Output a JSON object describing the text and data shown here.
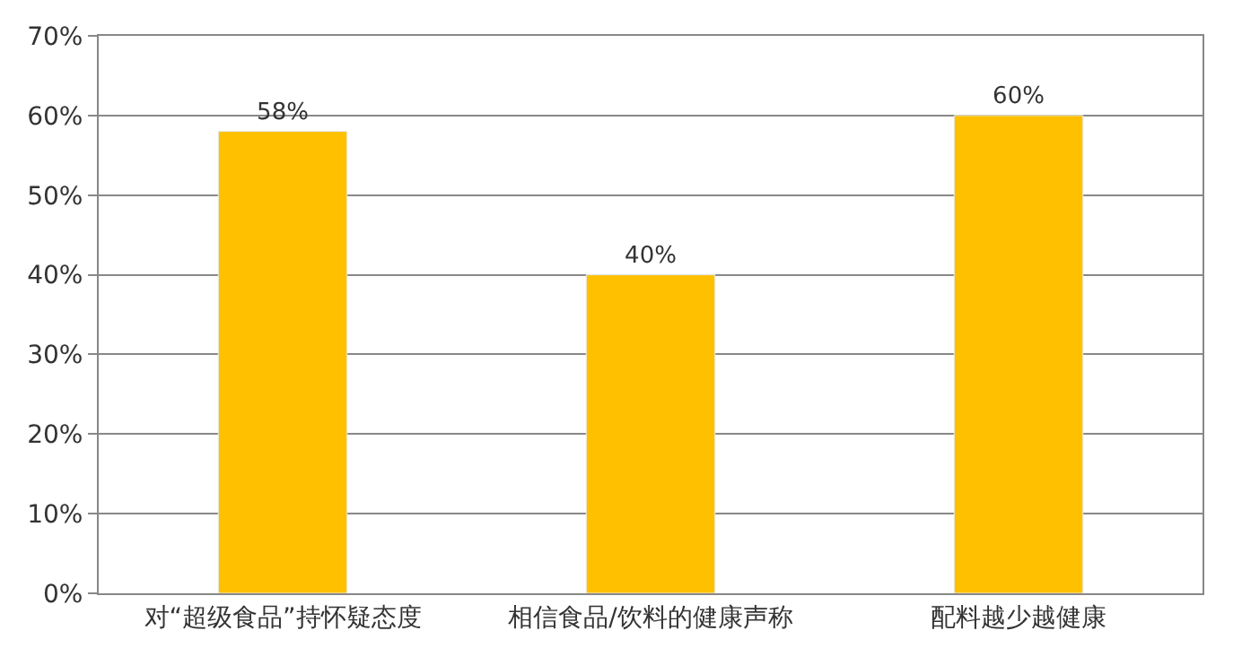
{
  "chart_data": {
    "type": "bar",
    "categories": [
      "对“超级食品”持怀疑态度",
      "相信食品/饮料的健康声称",
      "配料越少越健康"
    ],
    "values": [
      58,
      40,
      60
    ],
    "value_labels": [
      "58%",
      "40%",
      "60%"
    ],
    "color": "#ffc000",
    "ylim": [
      0,
      70
    ],
    "yticks": [
      {
        "value": 0,
        "label": "0%"
      },
      {
        "value": 10,
        "label": "10%"
      },
      {
        "value": 20,
        "label": "20%"
      },
      {
        "value": 30,
        "label": "30%"
      },
      {
        "value": 40,
        "label": "40%"
      },
      {
        "value": 50,
        "label": "50%"
      },
      {
        "value": 60,
        "label": "60%"
      },
      {
        "value": 70,
        "label": "70%"
      }
    ],
    "grid": "y"
  }
}
